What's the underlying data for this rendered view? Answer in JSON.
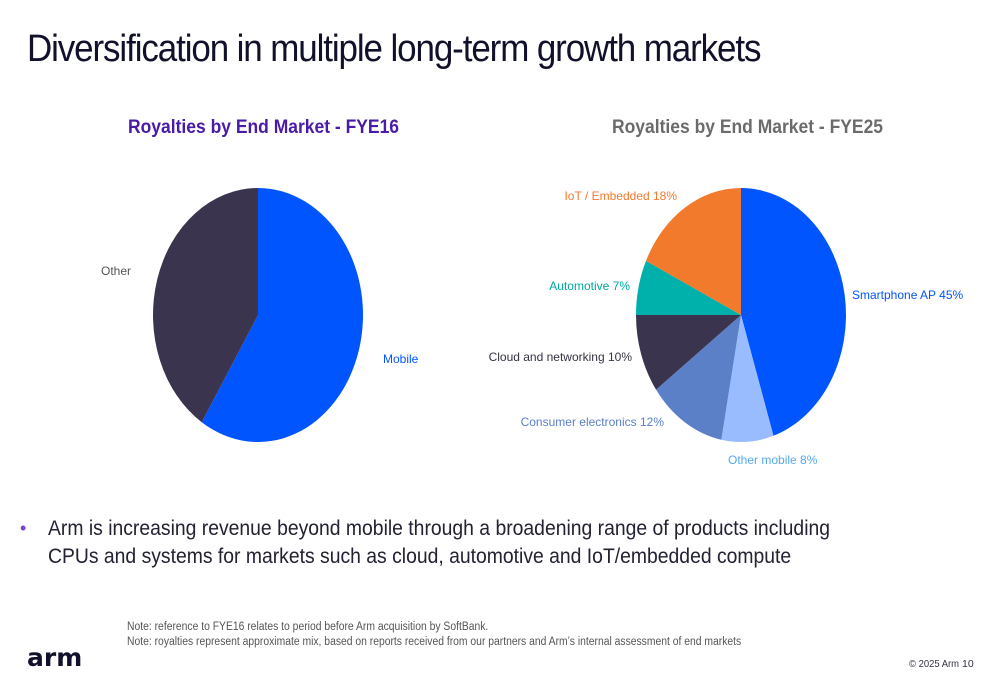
{
  "slide": {
    "title": "Diversification in multiple long-term growth markets",
    "bullet": "Arm is increasing revenue beyond mobile through a broadening range of products including CPUs and systems for markets such as cloud, automotive and IoT/embedded compute",
    "bullet_marker": "•",
    "notes": [
      "Note: reference to FYE16 relates to period before Arm acquisition by SoftBank.",
      "Note: royalties represent approximate mix, based on reports received from our partners and Arm’s internal assessment of end markets"
    ],
    "logo": "arm",
    "copyright": "© 2025 Arm",
    "page_number": "10"
  },
  "chart_data": [
    {
      "type": "pie",
      "title": "Royalties by End Market - FYE16",
      "title_color": "#4a1aa8",
      "start": "12 o'clock",
      "direction": "clockwise",
      "slices": [
        {
          "label": "Mobile",
          "value": 59,
          "color": "#0055ff",
          "label_color": "#0055ff"
        },
        {
          "label": "Other",
          "value": 41,
          "color": "#3a344f",
          "label_color": "#555555"
        }
      ]
    },
    {
      "type": "pie",
      "title": "Royalties by End Market - FYE25",
      "title_color": "#6b6b6b",
      "start": "12 o'clock",
      "direction": "clockwise",
      "slices": [
        {
          "label": "Smartphone AP 45%",
          "value": 45,
          "color": "#0055ff",
          "label_color": "#0055ff"
        },
        {
          "label": "Other mobile 8%",
          "value": 8,
          "color": "#99bbff",
          "label_color": "#55a8ee"
        },
        {
          "label": "Consumer electronics 12%",
          "value": 12,
          "color": "#5b80c8",
          "label_color": "#5b80c8"
        },
        {
          "label": "Cloud and networking 10%",
          "value": 10,
          "color": "#3a344f",
          "label_color": "#333344"
        },
        {
          "label": "Automotive 7%",
          "value": 7,
          "color": "#00b0aa",
          "label_color": "#00a8a0"
        },
        {
          "label": "IoT / Embedded 18%",
          "value": 18,
          "color": "#f27a2c",
          "label_color": "#f27a2c"
        }
      ]
    }
  ]
}
